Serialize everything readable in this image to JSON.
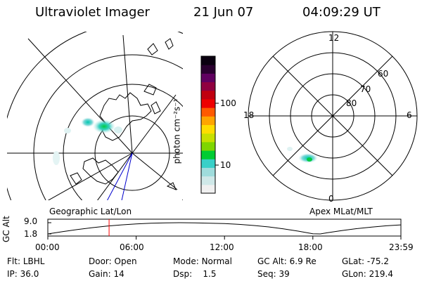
{
  "header": {
    "instrument": "Ultraviolet Imager",
    "date": "21 Jun 07",
    "time": "04:09:29 UT"
  },
  "maps": {
    "left_label": "Geographic Lat/Lon",
    "right_label": "Apex MLat/MLT",
    "mlt_labels": [
      "12",
      "18",
      "6",
      "0"
    ],
    "mlat_labels": [
      "60",
      "70",
      "80"
    ]
  },
  "colorbar": {
    "unit_label": "photon cm⁻²s⁻¹",
    "ticks": [
      "100",
      "10"
    ],
    "colors": [
      "#f0f0f0",
      "#cfe8e8",
      "#9fdcdc",
      "#39d0c8",
      "#00cc33",
      "#7fd600",
      "#c8e000",
      "#ffdd00",
      "#ffa500",
      "#ff5a00",
      "#ee0000",
      "#c00010",
      "#900040",
      "#600060",
      "#2a0030",
      "#0a0010"
    ]
  },
  "chart_data": {
    "type": "line",
    "title": "",
    "xlabel": "",
    "ylabel": "GC Alt",
    "x_ticks": [
      "00:00",
      "06:00",
      "12:00",
      "18:00",
      "23:59"
    ],
    "y_ticks": [
      "9.0",
      "1.8"
    ],
    "ylim": [
      1.8,
      9.0
    ],
    "xlim_hours": [
      0,
      23.98
    ],
    "series": [
      {
        "x": [
          0,
          1,
          2,
          3,
          4,
          5,
          6,
          7,
          8,
          9,
          10,
          11,
          12,
          13,
          14,
          15,
          16,
          17,
          18,
          18.5,
          19,
          20,
          21,
          22,
          23,
          23.98
        ],
        "values": [
          1.8,
          3.3,
          4.6,
          5.8,
          6.8,
          7.6,
          8.2,
          8.7,
          8.9,
          9.0,
          8.9,
          8.7,
          8.4,
          7.9,
          7.2,
          6.3,
          5.1,
          3.6,
          1.9,
          1.8,
          2.6,
          4.0,
          5.2,
          6.2,
          7.0,
          7.6
        ]
      }
    ],
    "current_time_hours": 4.16,
    "current_time_color": "#ff0000"
  },
  "info": {
    "row1": [
      {
        "label": "Flt:",
        "value": "LBHL"
      },
      {
        "label": "Door:",
        "value": "Open"
      },
      {
        "label": "Mode:",
        "value": "Normal"
      },
      {
        "label": "GC Alt:",
        "value": "6.9 Re"
      },
      {
        "label": "GLat:",
        "value": "-75.2"
      }
    ],
    "row2": [
      {
        "label": "IP:",
        "value": "36.0"
      },
      {
        "label": "Gain:",
        "value": "14"
      },
      {
        "label": "Dsp:",
        "value": "1.5"
      },
      {
        "label": "Seq:",
        "value": "39"
      },
      {
        "label": "GLon:",
        "value": "219.4"
      }
    ]
  }
}
